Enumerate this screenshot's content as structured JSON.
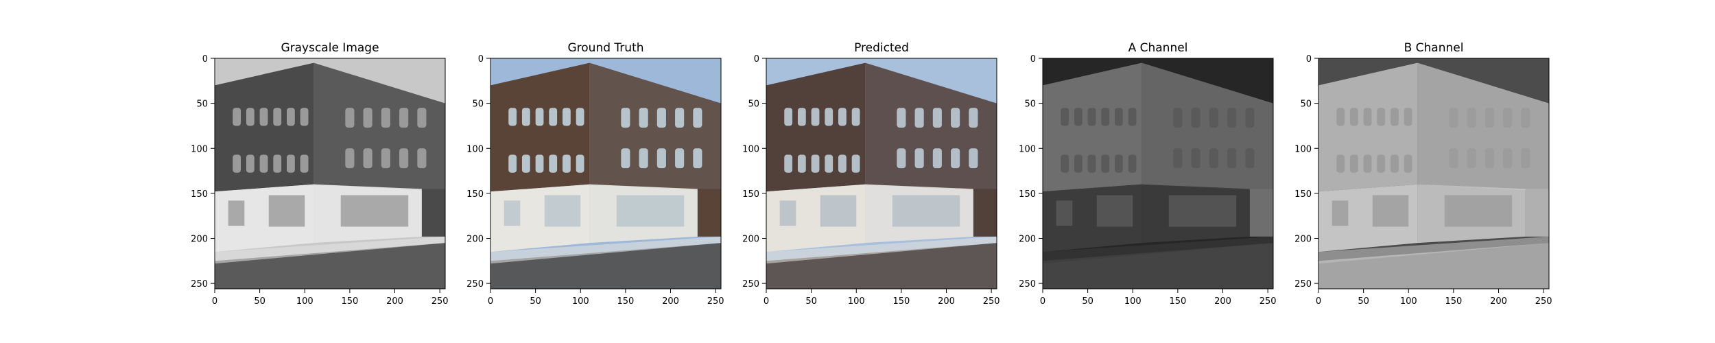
{
  "figure": {
    "panels": [
      {
        "title": "Grayscale Image",
        "kind": "grayscale",
        "x_ticks": [
          "0",
          "50",
          "100",
          "150",
          "200",
          "250"
        ],
        "y_ticks": [
          "0",
          "50",
          "100",
          "150",
          "200",
          "250"
        ],
        "palette": {
          "sky": "#c8c8c8",
          "upper": "#4a4a4a",
          "shop": "#e6e6e6",
          "street": "#5a5a5a",
          "window": "#9a9a9a"
        }
      },
      {
        "title": "Ground Truth",
        "kind": "color",
        "x_ticks": [
          "0",
          "50",
          "100",
          "150",
          "200",
          "250"
        ],
        "y_ticks": [
          "0",
          "50",
          "100",
          "150",
          "200",
          "250"
        ],
        "palette": {
          "sky": "#9db8d8",
          "upper": "#5a4438",
          "shop": "#e8e6e0",
          "street": "#56585a",
          "window": "#b8c4cc"
        }
      },
      {
        "title": "Predicted",
        "kind": "color",
        "x_ticks": [
          "0",
          "50",
          "100",
          "150",
          "200",
          "250"
        ],
        "y_ticks": [
          "0",
          "50",
          "100",
          "150",
          "200",
          "250"
        ],
        "palette": {
          "sky": "#a9c0dc",
          "upper": "#52403a",
          "shop": "#e6e2dc",
          "street": "#5e5654",
          "window": "#b4bec6"
        }
      },
      {
        "title": "A Channel",
        "kind": "channel-a",
        "x_ticks": [
          "0",
          "50",
          "100",
          "150",
          "200",
          "250"
        ],
        "y_ticks": [
          "0",
          "50",
          "100",
          "150",
          "200",
          "250"
        ],
        "palette": {
          "sky": "#262626",
          "upper": "#6e6e6e",
          "shop": "#3c3c3c",
          "street": "#444444",
          "window": "#5a5a5a"
        }
      },
      {
        "title": "B Channel",
        "kind": "channel-b",
        "x_ticks": [
          "0",
          "50",
          "100",
          "150",
          "200",
          "250"
        ],
        "y_ticks": [
          "0",
          "50",
          "100",
          "150",
          "200",
          "250"
        ],
        "palette": {
          "sky": "#4c4c4c",
          "upper": "#b0b0b0",
          "shop": "#c4c4c4",
          "street": "#a4a4a4",
          "window": "#9c9c9c"
        }
      }
    ]
  }
}
